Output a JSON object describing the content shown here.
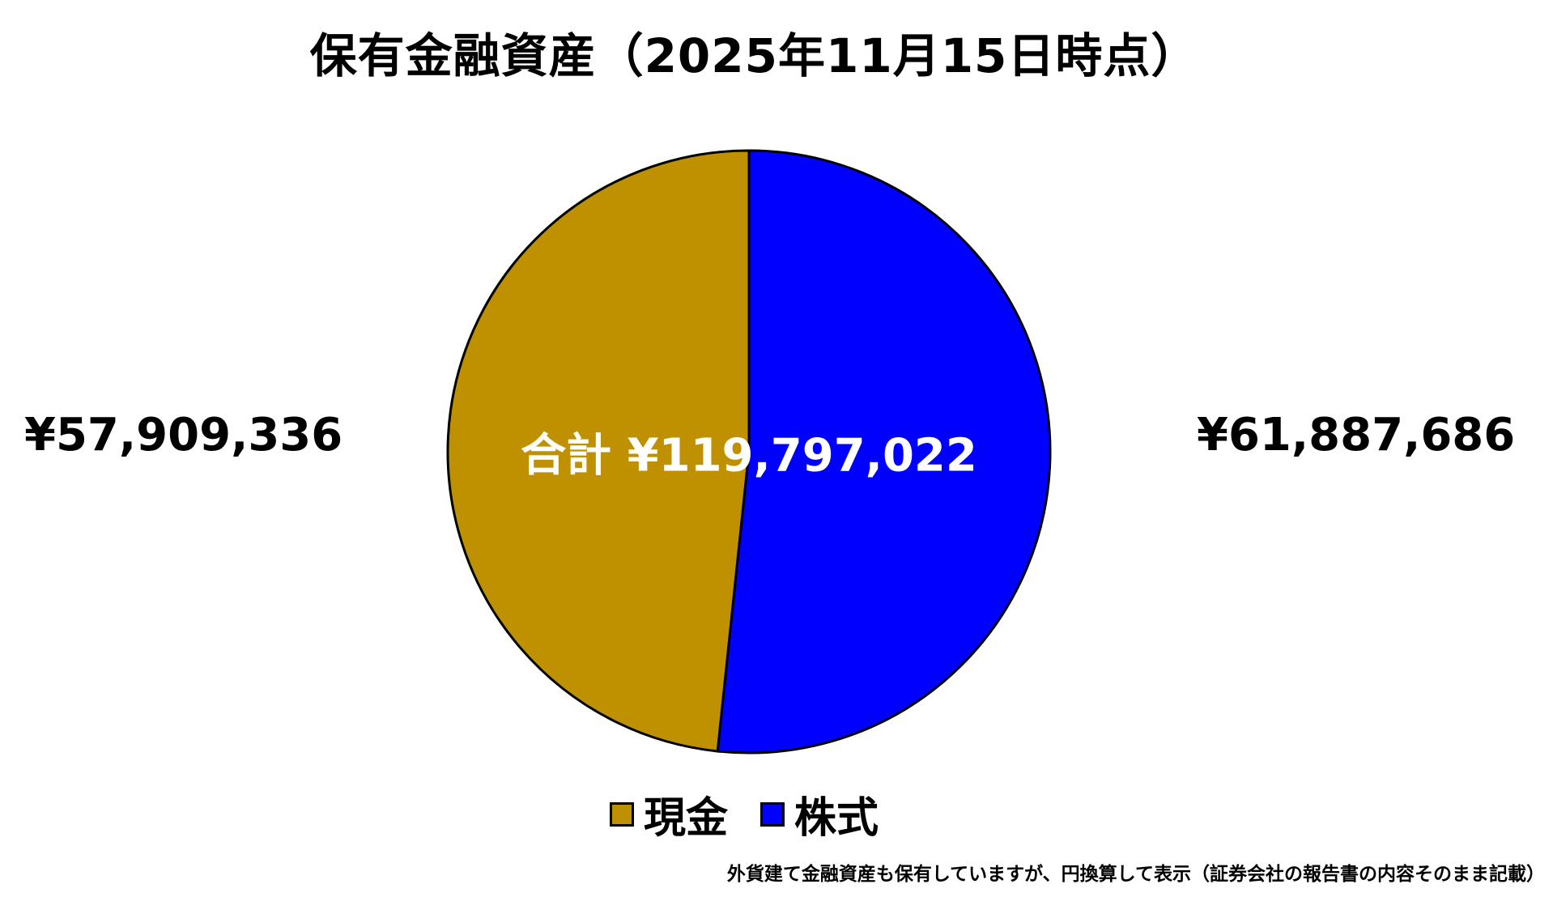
{
  "chart_data": {
    "type": "pie",
    "title": "保有金融資産（2025年11月15日時点）",
    "slices": [
      {
        "name": "現金",
        "value": 57909336,
        "label": "¥57,909,336",
        "color": "#BF9000"
      },
      {
        "name": "株式",
        "value": 61887686,
        "label": "¥61,887,686",
        "color": "#0000FF"
      }
    ],
    "total_label": "合計 ¥119,797,022",
    "start_angle_deg": 0,
    "direction": "clockwise",
    "legend_position": "bottom"
  },
  "footnote": "外貨建て金融資産も保有していますが、円換算して表示（証券会社の報告書の内容そのまま記載）"
}
